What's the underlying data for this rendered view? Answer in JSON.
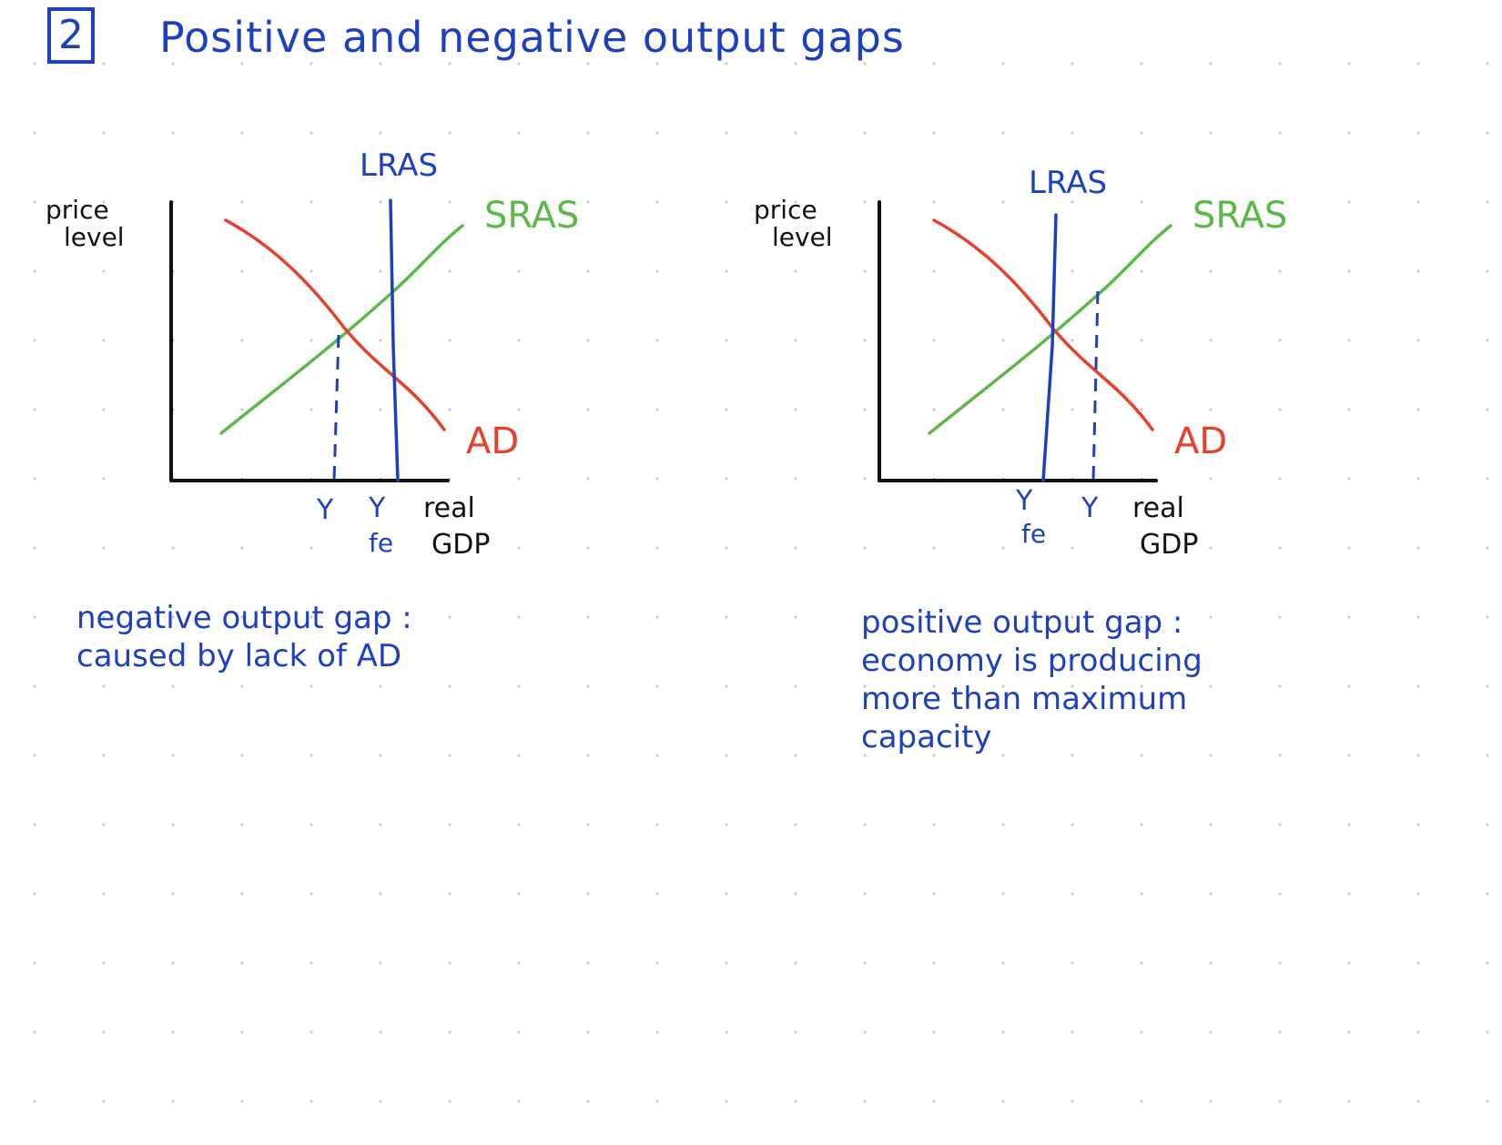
{
  "header": {
    "number": "2",
    "title": "Positive and negative output gaps"
  },
  "colors": {
    "ink_blue": "#1e40c0",
    "ad_red": "#e8402c",
    "sras_green": "#5db84a",
    "axis_black": "#111111"
  },
  "diagrams": [
    {
      "id": "left",
      "y_axis_label": [
        "price",
        "level"
      ],
      "x_axis_label": [
        "real",
        "GDP"
      ],
      "curves": {
        "lras": "LRAS",
        "sras": "SRAS",
        "ad": "AD"
      },
      "x_ticks": [
        {
          "label": "Y",
          "sub": ""
        },
        {
          "label": "Y",
          "sub": "fe"
        }
      ],
      "note": [
        "negative output gap :",
        "caused by lack of AD"
      ]
    },
    {
      "id": "right",
      "y_axis_label": [
        "price",
        "level"
      ],
      "x_axis_label": [
        "real",
        "GDP"
      ],
      "curves": {
        "lras": "LRAS",
        "sras": "SRAS",
        "ad": "AD"
      },
      "x_ticks": [
        {
          "label": "Y",
          "sub": "fe"
        },
        {
          "label": "Y",
          "sub": ""
        }
      ],
      "note": [
        "positive output gap :",
        "economy is producing",
        "more than maximum",
        "capacity"
      ]
    }
  ]
}
